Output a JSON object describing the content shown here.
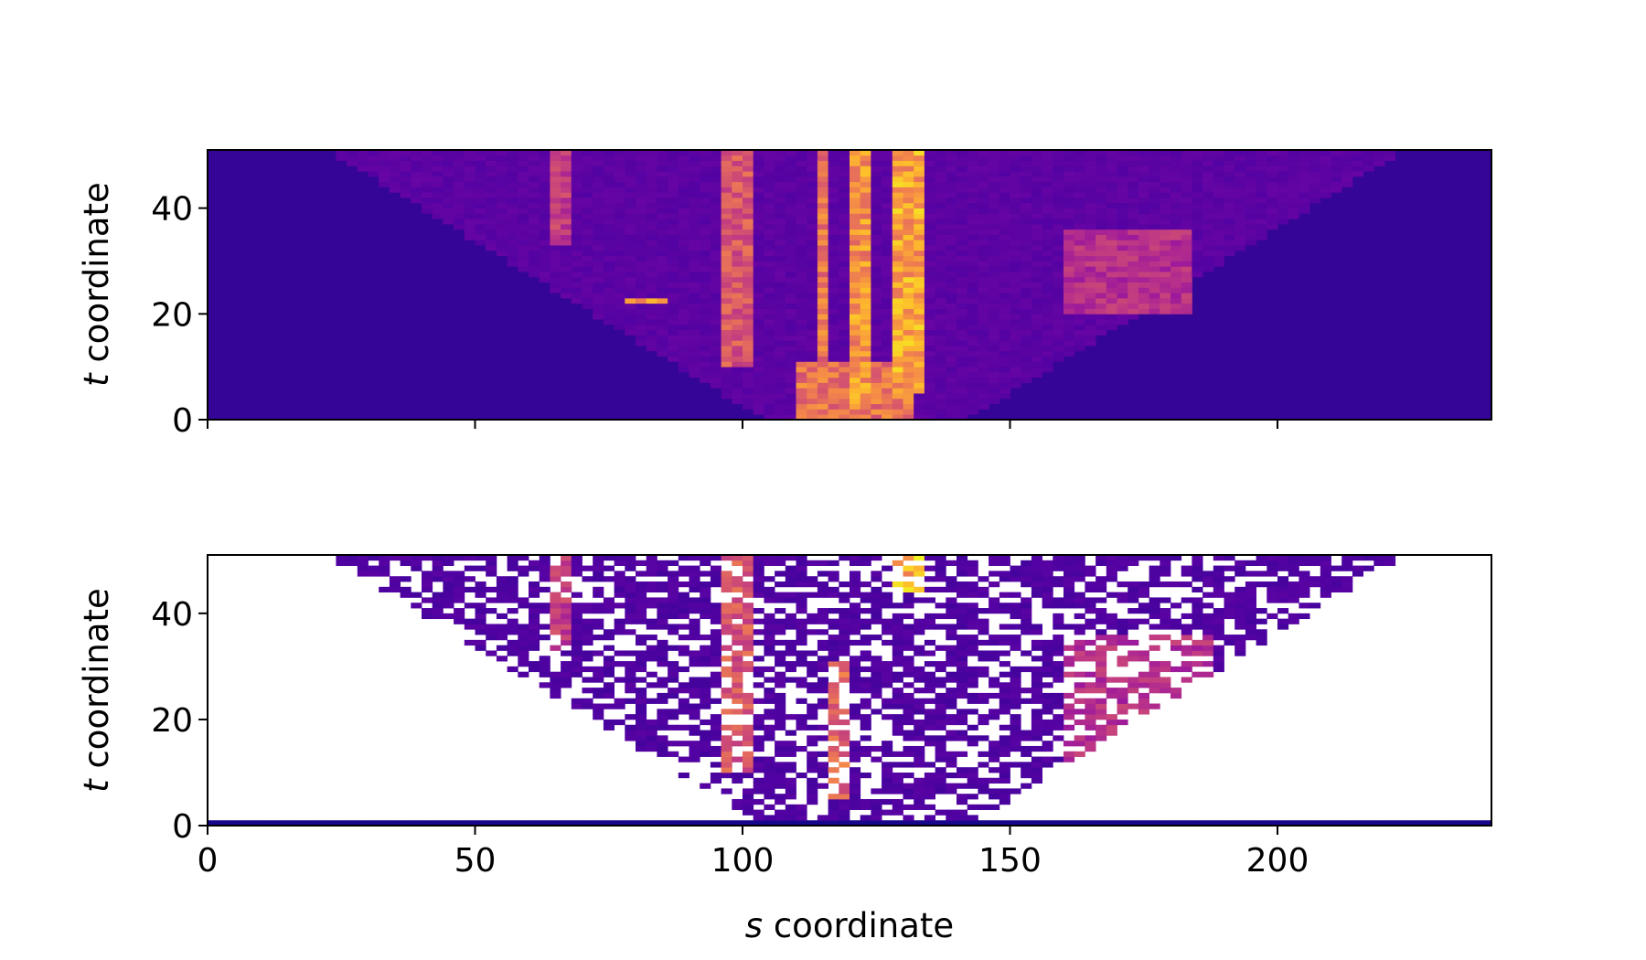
{
  "chart_data": [
    {
      "type": "heatmap",
      "panel": "top",
      "colormap": "plasma",
      "xlabel": "",
      "ylabel_var": "t",
      "ylabel_rest": " coordinate",
      "xlim": [
        0,
        240
      ],
      "ylim": [
        0,
        51
      ],
      "x_ticks": [
        0,
        50,
        100,
        150,
        200
      ],
      "x_tick_labels_visible": false,
      "y_ticks": [
        0,
        20,
        40
      ],
      "y_tick_labels": [
        "0",
        "20",
        "40"
      ],
      "background_value": 0.08,
      "features": [
        {
          "kind": "column",
          "s": [
            63,
            66
          ],
          "t": [
            33,
            51
          ],
          "v": 0.5
        },
        {
          "kind": "column",
          "s": [
            96,
            100
          ],
          "t": [
            10,
            51
          ],
          "v": 0.6
        },
        {
          "kind": "column",
          "s": [
            113,
            115
          ],
          "t": [
            0,
            51
          ],
          "v": 0.7
        },
        {
          "kind": "column",
          "s": [
            119,
            122
          ],
          "t": [
            2,
            51
          ],
          "v": 0.8
        },
        {
          "kind": "column",
          "s": [
            128,
            132
          ],
          "t": [
            5,
            51
          ],
          "v": 0.85
        },
        {
          "kind": "blob",
          "s": [
            110,
            130
          ],
          "t": [
            0,
            10
          ],
          "v": 0.7
        },
        {
          "kind": "ridge",
          "s": [
            160,
            182
          ],
          "t": [
            20,
            35
          ],
          "v": 0.45
        },
        {
          "kind": "dots",
          "s": [
            78,
            85
          ],
          "t": [
            22,
            22
          ],
          "v": 0.9
        }
      ]
    },
    {
      "type": "heatmap",
      "panel": "bottom",
      "colormap": "plasma",
      "masked_color": "#ffffff",
      "xlabel_var": "s",
      "xlabel_rest": " coordinate",
      "ylabel_var": "t",
      "ylabel_rest": " coordinate",
      "xlim": [
        0,
        240
      ],
      "ylim": [
        0,
        51
      ],
      "x_ticks": [
        0,
        50,
        100,
        150,
        200
      ],
      "x_tick_labels": [
        "0",
        "50",
        "100",
        "150",
        "200"
      ],
      "y_ticks": [
        0,
        20,
        40
      ],
      "y_tick_labels": [
        "0",
        "20",
        "40"
      ],
      "baseline_row_t": 0,
      "features": [
        {
          "kind": "column",
          "s": [
            63,
            66
          ],
          "t": [
            33,
            51
          ],
          "v": 0.5
        },
        {
          "kind": "column",
          "s": [
            96,
            100
          ],
          "t": [
            10,
            51
          ],
          "v": 0.6
        },
        {
          "kind": "column",
          "s": [
            116,
            118
          ],
          "t": [
            5,
            30
          ],
          "v": 0.65
        },
        {
          "kind": "column",
          "s": [
            128,
            132
          ],
          "t": [
            44,
            51
          ],
          "v": 0.9
        },
        {
          "kind": "ridge",
          "s": [
            160,
            186
          ],
          "t": [
            12,
            35
          ],
          "v": 0.45
        }
      ]
    }
  ]
}
